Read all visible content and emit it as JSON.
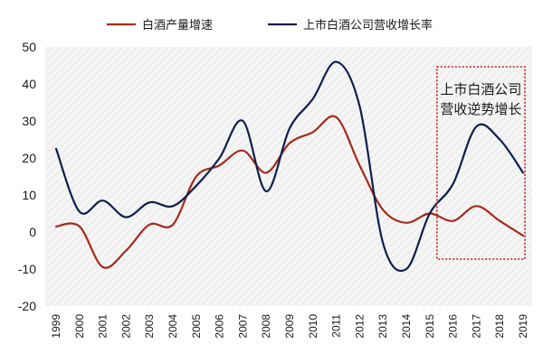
{
  "chart_data": {
    "type": "line",
    "title": "",
    "xlabel": "",
    "ylabel": "",
    "x": [
      "1999",
      "2000",
      "2001",
      "2002",
      "2003",
      "2004",
      "2005",
      "2006",
      "2007",
      "2008",
      "2009",
      "2010",
      "2011",
      "2012",
      "2013",
      "2014",
      "2015",
      "2016",
      "2017",
      "2018",
      "2019"
    ],
    "ylim": [
      -20,
      50
    ],
    "yticks": [
      "50",
      "40",
      "30",
      "20",
      "10",
      "0",
      "-10",
      "-20"
    ],
    "grid": false,
    "legend_position": "top",
    "series": [
      {
        "name": "白酒产量增速",
        "color": "#a52a1a",
        "values": [
          1.5,
          1.5,
          -9.5,
          -5,
          2,
          2,
          15,
          18,
          22,
          16,
          24,
          27,
          31,
          18,
          6,
          2.5,
          5,
          3,
          7,
          3,
          -1
        ]
      },
      {
        "name": "上市白酒公司营收增长率",
        "color": "#0d1f4f",
        "values": [
          22.5,
          5.5,
          8.5,
          4,
          8,
          7,
          12.5,
          20,
          30,
          11,
          28,
          36,
          46,
          34,
          -3,
          -10,
          5,
          13,
          28.5,
          25,
          16
        ]
      }
    ],
    "annotation": {
      "text_line1": "上市白酒公司",
      "text_line2": "营收逆势增长",
      "box_x_range": [
        "2015",
        "2019"
      ],
      "box_color": "#b22222"
    }
  }
}
